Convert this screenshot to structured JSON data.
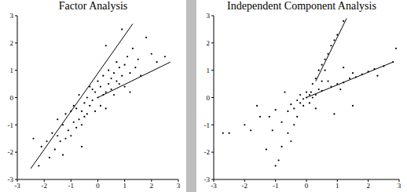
{
  "chart_data": [
    {
      "type": "scatter",
      "title": "Factor Analysis",
      "color": "#000000",
      "marker": "dot",
      "x": [
        -2.4,
        -2.2,
        -2.1,
        -1.9,
        -1.8,
        -1.7,
        -1.6,
        -1.5,
        -1.5,
        -1.4,
        -1.3,
        -1.2,
        -1.2,
        -1.1,
        -1.0,
        -1.0,
        -0.9,
        -0.9,
        -0.8,
        -0.8,
        -0.7,
        -0.7,
        -0.6,
        -0.6,
        -0.5,
        -0.5,
        -0.4,
        -0.4,
        -0.3,
        -0.3,
        -0.2,
        -0.2,
        -0.1,
        -0.1,
        0.0,
        0.0,
        0.1,
        0.1,
        0.2,
        0.2,
        0.3,
        0.3,
        0.4,
        0.4,
        0.5,
        0.5,
        0.6,
        0.6,
        0.7,
        0.7,
        0.8,
        0.8,
        0.9,
        1.0,
        1.0,
        1.1,
        1.2,
        1.3,
        1.4,
        1.5,
        1.6,
        1.8,
        2.0,
        2.2,
        2.5,
        -1.3,
        0.9,
        1.2,
        -0.6,
        0.3
      ],
      "values": [
        -1.5,
        -2.5,
        -1.8,
        -1.6,
        -2.2,
        -1.3,
        -1.9,
        -1.4,
        -0.8,
        -1.6,
        -1.0,
        -1.5,
        -0.6,
        -1.2,
        -0.5,
        -1.4,
        -0.9,
        -0.3,
        -1.1,
        -0.4,
        -0.8,
        0.1,
        -0.5,
        -1.0,
        -0.2,
        -0.7,
        0.0,
        -0.6,
        -0.3,
        0.4,
        -0.1,
        0.3,
        -0.5,
        0.2,
        0.0,
        0.6,
        -0.3,
        0.4,
        0.1,
        0.8,
        0.2,
        -0.4,
        0.5,
        1.0,
        0.3,
        0.7,
        0.9,
        0.1,
        0.6,
        1.3,
        0.5,
        1.1,
        0.8,
        1.2,
        0.4,
        1.5,
        0.9,
        1.8,
        1.1,
        1.4,
        0.8,
        2.2,
        1.6,
        1.3,
        1.5,
        -2.1,
        2.5,
        0.2,
        -1.8,
        1.9
      ],
      "lines": [
        {
          "x": [
            -2.5,
            1.3
          ],
          "y": [
            -2.6,
            2.7
          ]
        },
        {
          "x": [
            0.0,
            2.7
          ],
          "y": [
            0.0,
            1.3
          ]
        }
      ],
      "xlim": [
        -3,
        3
      ],
      "ylim": [
        -3,
        3
      ],
      "xticks": [
        -3,
        -2,
        -1,
        0,
        1,
        2,
        3
      ],
      "yticks": [
        -3,
        -2,
        -1,
        0,
        1,
        2,
        3
      ]
    },
    {
      "type": "scatter",
      "title": "Independent Component Analysis",
      "color": "#000000",
      "marker": "dot",
      "x": [
        0.5,
        0.8,
        1.0,
        1.2,
        1.4,
        1.6,
        1.8,
        2.0,
        2.2,
        2.5,
        2.8,
        1.1,
        1.5,
        2.3,
        -0.5,
        -1.0,
        -1.5,
        -2.0,
        -2.7,
        -1.2,
        0.3,
        0.4,
        0.5,
        0.6,
        0.7,
        0.8,
        0.9,
        1.0,
        1.2,
        -0.3,
        -0.4,
        -0.6,
        -0.8,
        -0.9,
        -1.0,
        0.2,
        0.6,
        0.0,
        0.1,
        -0.1,
        0.2,
        -0.2,
        0.15,
        -0.3,
        0.3,
        -0.1,
        0.0,
        -0.4,
        0.4,
        -0.6,
        0.5,
        -0.2,
        0.1,
        -1.8,
        -2.5,
        -1.3,
        -0.5,
        1.5,
        0.9,
        -1.6,
        2.9,
        -0.8,
        -1.1,
        0.7,
        1.2,
        -0.7,
        0.3
      ],
      "values": [
        0.25,
        0.4,
        0.5,
        0.55,
        0.7,
        0.75,
        0.85,
        0.95,
        1.05,
        1.15,
        1.3,
        0.3,
        0.9,
        0.8,
        -0.25,
        -0.45,
        -0.7,
        -1.0,
        -1.3,
        -0.7,
        0.7,
        1.0,
        1.2,
        1.4,
        1.6,
        1.9,
        2.1,
        2.3,
        2.8,
        -0.7,
        -1.0,
        -1.3,
        -1.8,
        -2.3,
        -2.5,
        0.5,
        1.0,
        0.0,
        0.1,
        -0.05,
        0.0,
        -0.2,
        0.2,
        -0.1,
        0.1,
        -0.3,
        0.2,
        -0.4,
        0.3,
        -0.5,
        0.6,
        0.1,
        -0.2,
        -1.2,
        -1.3,
        -1.9,
        -1.6,
        -0.3,
        -0.6,
        -0.3,
        1.8,
        -0.9,
        -1.2,
        0.6,
        1.1,
        0.2,
        -0.4
      ],
      "lines": [
        {
          "x": [
            0.3,
            1.3
          ],
          "y": [
            0.6,
            2.9
          ]
        },
        {
          "x": [
            0.0,
            2.8
          ],
          "y": [
            0.0,
            1.3
          ]
        }
      ],
      "xlim": [
        -3,
        3
      ],
      "ylim": [
        -3,
        3
      ],
      "xticks": [
        -3,
        -2,
        -1,
        0,
        1,
        2,
        3
      ],
      "yticks": [
        -3,
        -2,
        -1,
        0,
        1,
        2,
        3
      ]
    }
  ]
}
